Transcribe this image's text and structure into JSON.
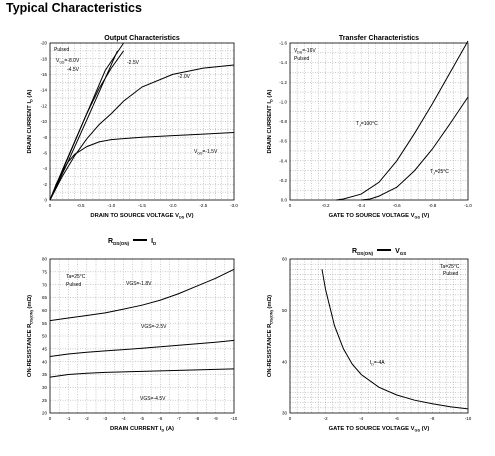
{
  "page_title": "Typical Characteristics",
  "chart_data": [
    {
      "id": "output",
      "type": "line",
      "title": "Output Characteristics",
      "xlabel": "DRAIN TO SOURCE VOLTAGE V",
      "x_sub": "DS",
      "x_unit": "(V)",
      "ylabel": "DRAIN CURRENT I",
      "y_sub": "D",
      "y_unit": "(A)",
      "xlim": [
        0,
        -3.0
      ],
      "ylim": [
        0,
        -20
      ],
      "xticks": [
        "0",
        "-0.5",
        "-1.0",
        "-1.5",
        "-2.0",
        "-2.5",
        "-3.0"
      ],
      "xtick_values": [
        0,
        -0.5,
        -1.0,
        -1.5,
        -2.0,
        -2.5,
        -3.0
      ],
      "yticks": [
        "0",
        "-2",
        "-4",
        "-6",
        "-8",
        "-10",
        "-12",
        "-14",
        "-16",
        "-18",
        "-20"
      ],
      "ytick_values": [
        0,
        -2,
        -4,
        -6,
        -8,
        -10,
        -12,
        -14,
        -16,
        -18,
        -20
      ],
      "grid": true,
      "series": [
        {
          "name": "VGS=-8.0V",
          "x": [
            0,
            -0.3,
            -0.6,
            -0.9,
            -1.2
          ],
          "y": [
            0,
            -5.5,
            -11,
            -16.5,
            -20
          ]
        },
        {
          "name": "-4.5V",
          "x": [
            0,
            -0.3,
            -0.6,
            -0.9,
            -1.1
          ],
          "y": [
            0,
            -5.0,
            -10.2,
            -15.5,
            -19.0
          ]
        },
        {
          "name": "-2.5V",
          "x": [
            0,
            -0.2,
            -0.4,
            -0.6,
            -0.8,
            -1.0,
            -1.2
          ],
          "y": [
            0,
            -3.8,
            -7.4,
            -11.0,
            -14.2,
            -16.8,
            -19.0
          ]
        },
        {
          "name": "-2.0V",
          "x": [
            0,
            -0.2,
            -0.4,
            -0.6,
            -0.8,
            -1.0,
            -1.2,
            -1.5,
            -2.0,
            -2.5,
            -3.0
          ],
          "y": [
            0,
            -3.0,
            -5.6,
            -7.8,
            -9.6,
            -11.0,
            -12.6,
            -14.4,
            -16.0,
            -16.8,
            -17.2
          ]
        },
        {
          "name": "VGS=-1.5V",
          "x": [
            0,
            -0.1,
            -0.2,
            -0.3,
            -0.4,
            -0.6,
            -0.8,
            -1.0,
            -1.5,
            -2.0,
            -2.5,
            -3.0
          ],
          "y": [
            0,
            -2.0,
            -3.6,
            -4.9,
            -5.8,
            -6.8,
            -7.4,
            -7.7,
            -8.0,
            -8.2,
            -8.4,
            -8.6
          ]
        }
      ],
      "annotations": [
        "Pulsed",
        "V",
        "GS",
        "=-8.0V",
        "-4.5V",
        "-2.5V",
        "-2.0V",
        "V",
        "GS",
        "=-1.5V"
      ]
    },
    {
      "id": "transfer",
      "type": "line",
      "title": "Transfer Characteristics",
      "xlabel": "GATE TO SOURCE VOLTAGE V",
      "x_sub": "GS",
      "x_unit": "(V)",
      "ylabel": "DRAIN CURRENT I",
      "y_sub": "D",
      "y_unit": "(A)",
      "xlim": [
        0,
        -1.0
      ],
      "ylim": [
        0,
        -1.6
      ],
      "xticks": [
        "0",
        "-0.2",
        "-0.4",
        "-0.6",
        "-0.8",
        "-1.0"
      ],
      "xtick_values": [
        0,
        -0.2,
        -0.4,
        -0.6,
        -0.8,
        -1.0
      ],
      "yticks": [
        "0.0",
        "-0.2",
        "-0.4",
        "-0.6",
        "-0.8",
        "-1.0",
        "-1.2",
        "-1.4",
        "-1.6"
      ],
      "ytick_values": [
        0,
        -0.2,
        -0.4,
        -0.6,
        -0.8,
        -1.0,
        -1.2,
        -1.4,
        -1.6
      ],
      "grid": true,
      "series": [
        {
          "name": "TJ=100°C",
          "x": [
            -0.26,
            -0.3,
            -0.4,
            -0.5,
            -0.6,
            -0.7,
            -0.8,
            -0.9,
            -1.0
          ],
          "y": [
            0,
            -0.01,
            -0.06,
            -0.18,
            -0.4,
            -0.68,
            -0.98,
            -1.3,
            -1.62
          ]
        },
        {
          "name": "TJ=25°C",
          "x": [
            -0.4,
            -0.45,
            -0.5,
            -0.6,
            -0.7,
            -0.8,
            -0.9,
            -1.0
          ],
          "y": [
            0,
            -0.01,
            -0.04,
            -0.13,
            -0.3,
            -0.52,
            -0.78,
            -1.05
          ]
        }
      ],
      "annotations": [
        "V",
        "DS",
        "=-16V",
        "Pulsed",
        "T",
        "J",
        "=100°C",
        "T",
        "J",
        "=25°C"
      ]
    },
    {
      "id": "rds_vs_id",
      "type": "line",
      "title": "R DS(ON) — I D",
      "title_parts": [
        "R",
        "DS(ON)",
        "I",
        "D"
      ],
      "xlabel": "DRAIN CURRENT I",
      "x_sub": "D",
      "x_unit": "(A)",
      "ylabel": "ON-RESISTANCE R",
      "y_sub": "DS(ON)",
      "y_unit": "(mΩ)",
      "xlim": [
        0,
        -10
      ],
      "ylim": [
        20,
        80
      ],
      "xticks": [
        "0",
        "-1",
        "-2",
        "-3",
        "-4",
        "-5",
        "-6",
        "-7",
        "-8",
        "-9",
        "-10"
      ],
      "xtick_values": [
        0,
        -1,
        -2,
        -3,
        -4,
        -5,
        -6,
        -7,
        -8,
        -9,
        -10
      ],
      "yticks": [
        "20",
        "25",
        "30",
        "35",
        "40",
        "45",
        "50",
        "55",
        "60",
        "65",
        "70",
        "75",
        "80"
      ],
      "ytick_values": [
        20,
        25,
        30,
        35,
        40,
        45,
        50,
        55,
        60,
        65,
        70,
        75,
        80
      ],
      "grid": true,
      "series": [
        {
          "name": "VGS=-1.8V",
          "x": [
            0,
            -1,
            -2,
            -3,
            -4,
            -5,
            -6,
            -7,
            -8,
            -9,
            -10
          ],
          "y": [
            56,
            57,
            58,
            59,
            60.5,
            62,
            64,
            66.5,
            69.5,
            72.5,
            76
          ]
        },
        {
          "name": "VGS=-2.5V",
          "x": [
            0,
            -1,
            -2,
            -3,
            -4,
            -5,
            -6,
            -7,
            -8,
            -9,
            -10
          ],
          "y": [
            42,
            43,
            43.7,
            44.2,
            44.7,
            45.2,
            45.8,
            46.4,
            47.0,
            47.6,
            48.3
          ]
        },
        {
          "name": "VGS=-4.5V",
          "x": [
            0,
            -1,
            -2,
            -3,
            -4,
            -5,
            -6,
            -7,
            -8,
            -9,
            -10
          ],
          "y": [
            34,
            35,
            35.5,
            35.8,
            36.0,
            36.2,
            36.4,
            36.6,
            36.8,
            37.0,
            37.2
          ]
        }
      ],
      "annotations": [
        "Ta=25°C",
        "Pulsed",
        "VGS=-1.8V",
        "VGS=-2.5V",
        "VGS=-4.5V"
      ]
    },
    {
      "id": "rds_vs_vgs",
      "type": "line",
      "title": "R DS(ON) — V GS",
      "title_parts": [
        "R",
        "DS(ON)",
        "V",
        "GS"
      ],
      "xlabel": "GATE TO SOURCE VOLTAGE V",
      "x_sub": "GS",
      "x_unit": "(V)",
      "ylabel": "ON-RESISTANCE R",
      "y_sub": "DS(ON)",
      "y_unit": "(mΩ)",
      "xlim": [
        0,
        -10
      ],
      "ylim": [
        30,
        60
      ],
      "xticks": [
        "0",
        "-2",
        "-4",
        "-6",
        "-8",
        "-10"
      ],
      "xtick_values": [
        0,
        -2,
        -4,
        -6,
        -8,
        -10
      ],
      "yticks": [
        "30",
        "40",
        "50",
        "60"
      ],
      "ytick_values": [
        30,
        40,
        50,
        60
      ],
      "grid": true,
      "series": [
        {
          "name": "ID=-4A",
          "x": [
            -1.8,
            -2.0,
            -2.5,
            -3.0,
            -3.5,
            -4.0,
            -5.0,
            -6.0,
            -7.0,
            -8.0,
            -9.0,
            -10.0
          ],
          "y": [
            58,
            54,
            47,
            42.5,
            39.5,
            37.5,
            35,
            33.5,
            32.5,
            31.8,
            31.2,
            30.8
          ]
        }
      ],
      "annotations": [
        "Ta=25°C",
        "Pulsed",
        "I",
        "D",
        "=-4A"
      ]
    }
  ]
}
